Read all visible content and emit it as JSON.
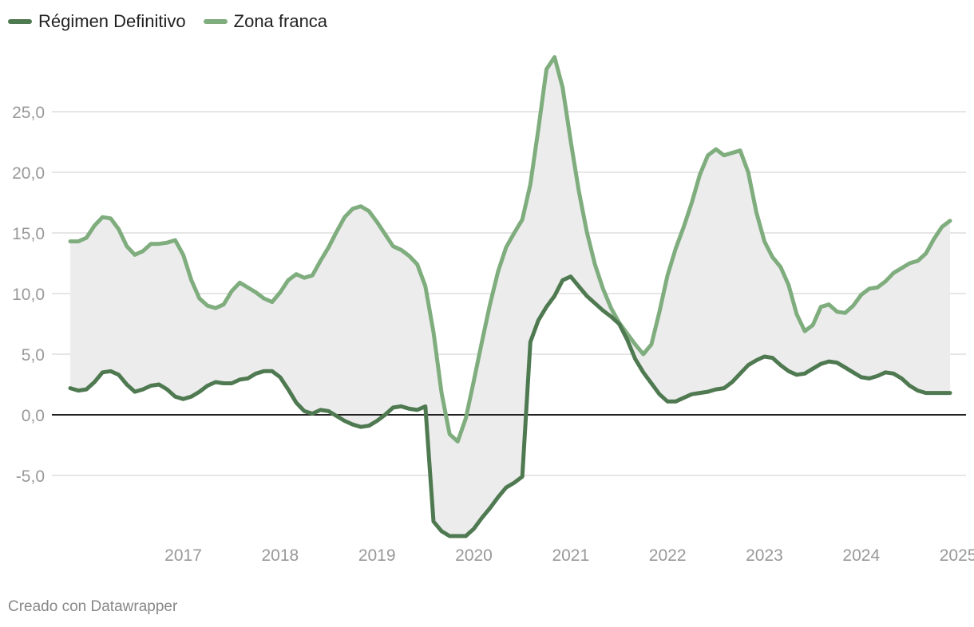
{
  "legend": {
    "series_a": "Régimen Definitivo",
    "series_b": "Zona franca"
  },
  "credit": "Creado con Datawrapper",
  "colors": {
    "definitivo": "#4f7a51",
    "zona_franca": "#7fad7e",
    "fill": "#ececec",
    "grid": "#dddddd",
    "zero_line": "#222222",
    "tick_text": "#999999"
  },
  "chart_data": {
    "type": "line",
    "title": "",
    "xlabel": "",
    "ylabel": "",
    "ylim": [
      -10,
      30
    ],
    "xlim": [
      "2016-05",
      "2025-06"
    ],
    "y_ticks": [
      "25,0",
      "20,0",
      "15,0",
      "10,0",
      "5,0",
      "0,0",
      "-5,0"
    ],
    "y_tick_values": [
      25,
      20,
      15,
      10,
      5,
      0,
      -5
    ],
    "x_ticks": [
      "2017",
      "2018",
      "2019",
      "2020",
      "2021",
      "2022",
      "2023",
      "2024",
      "2025"
    ],
    "grid": true,
    "legend_position": "top-left",
    "fill_between": true,
    "x": [
      "2016-05",
      "2016-06",
      "2016-07",
      "2016-08",
      "2016-09",
      "2016-10",
      "2016-11",
      "2016-12",
      "2017-01",
      "2017-02",
      "2017-03",
      "2017-04",
      "2017-05",
      "2017-06",
      "2017-07",
      "2017-08",
      "2017-09",
      "2017-10",
      "2017-11",
      "2017-12",
      "2018-01",
      "2018-02",
      "2018-03",
      "2018-04",
      "2018-05",
      "2018-06",
      "2018-07",
      "2018-08",
      "2018-09",
      "2018-10",
      "2018-11",
      "2018-12",
      "2019-01",
      "2019-02",
      "2019-03",
      "2019-04",
      "2019-05",
      "2019-06",
      "2019-07",
      "2019-08",
      "2019-09",
      "2019-10",
      "2019-11",
      "2019-12",
      "2020-01",
      "2020-02",
      "2020-03",
      "2020-04",
      "2020-05",
      "2020-06",
      "2020-07",
      "2020-08",
      "2020-09",
      "2020-10",
      "2020-11",
      "2020-12",
      "2021-01",
      "2021-02",
      "2021-03",
      "2021-04",
      "2021-05",
      "2021-06",
      "2021-07",
      "2021-08",
      "2021-09",
      "2021-10",
      "2021-11",
      "2021-12",
      "2022-01",
      "2022-02",
      "2022-03",
      "2022-04",
      "2022-05",
      "2022-06",
      "2022-07",
      "2022-08",
      "2022-09",
      "2022-10",
      "2022-11",
      "2022-12",
      "2023-01",
      "2023-02",
      "2023-03",
      "2023-04",
      "2023-05",
      "2023-06",
      "2023-07",
      "2023-08",
      "2023-09",
      "2023-10",
      "2023-11",
      "2023-12",
      "2024-01",
      "2024-02",
      "2024-03",
      "2024-04",
      "2024-05",
      "2024-06",
      "2024-07",
      "2024-08",
      "2024-09",
      "2024-10",
      "2024-11",
      "2024-12",
      "2025-01",
      "2025-02",
      "2025-03",
      "2025-04",
      "2025-05",
      "2025-06"
    ],
    "series": [
      {
        "name": "Régimen Definitivo",
        "values": [
          2.2,
          2.0,
          2.1,
          2.7,
          3.5,
          3.6,
          3.3,
          2.5,
          1.9,
          2.1,
          2.4,
          2.5,
          2.1,
          1.5,
          1.3,
          1.5,
          1.9,
          2.4,
          2.7,
          2.6,
          2.6,
          2.9,
          3.0,
          3.4,
          3.6,
          3.6,
          3.1,
          2.1,
          1.0,
          0.3,
          0.1,
          0.4,
          0.3,
          -0.1,
          -0.5,
          -0.8,
          -1.0,
          -0.9,
          -0.5,
          0.0,
          0.6,
          0.7,
          0.5,
          0.4,
          0.7,
          -8.8,
          -9.6,
          -10.0,
          -10.0,
          -10.0,
          -9.4,
          -8.5,
          -7.7,
          -6.8,
          -6.0,
          -5.6,
          -5.1,
          6.0,
          7.8,
          8.9,
          9.8,
          11.1,
          11.4,
          10.6,
          9.8,
          9.2,
          8.6,
          8.1,
          7.5,
          6.2,
          4.6,
          3.5,
          2.6,
          1.7,
          1.1,
          1.1,
          1.4,
          1.7,
          1.8,
          1.9,
          2.1,
          2.2,
          2.7,
          3.4,
          4.1,
          4.5,
          4.8,
          4.7,
          4.1,
          3.6,
          3.3,
          3.4,
          3.8,
          4.2,
          4.4,
          4.3,
          3.9,
          3.5,
          3.1,
          3.0,
          3.2,
          3.5,
          3.4,
          3.0,
          2.4,
          2.0,
          1.8,
          1.8,
          1.8,
          1.8
        ]
      },
      {
        "name": "Zona franca",
        "values": [
          14.3,
          14.3,
          14.6,
          15.6,
          16.3,
          16.2,
          15.3,
          13.9,
          13.2,
          13.5,
          14.1,
          14.1,
          14.2,
          14.4,
          13.2,
          11.1,
          9.6,
          9.0,
          8.8,
          9.1,
          10.2,
          10.9,
          10.5,
          10.1,
          9.6,
          9.3,
          10.1,
          11.1,
          11.6,
          11.3,
          11.5,
          12.7,
          13.8,
          15.1,
          16.3,
          17.0,
          17.2,
          16.8,
          15.9,
          14.9,
          13.9,
          13.6,
          13.1,
          12.4,
          10.6,
          6.8,
          1.8,
          -1.6,
          -2.2,
          -0.3,
          2.8,
          6.0,
          9.1,
          11.8,
          13.8,
          15.0,
          16.1,
          19.0,
          23.6,
          28.5,
          29.5,
          27.0,
          22.6,
          18.5,
          15.1,
          12.4,
          10.4,
          8.8,
          7.6,
          6.7,
          5.8,
          5.0,
          5.8,
          8.5,
          11.5,
          13.7,
          15.5,
          17.5,
          19.8,
          21.4,
          21.9,
          21.4,
          21.6,
          21.8,
          20.0,
          16.7,
          14.3,
          13.0,
          12.2,
          10.7,
          8.3,
          6.9,
          7.4,
          8.9,
          9.1,
          8.5,
          8.4,
          9.0,
          9.9,
          10.4,
          10.5,
          11.0,
          11.7,
          12.1,
          12.5,
          12.7,
          13.3,
          14.5,
          15.5,
          16.0
        ]
      }
    ]
  }
}
